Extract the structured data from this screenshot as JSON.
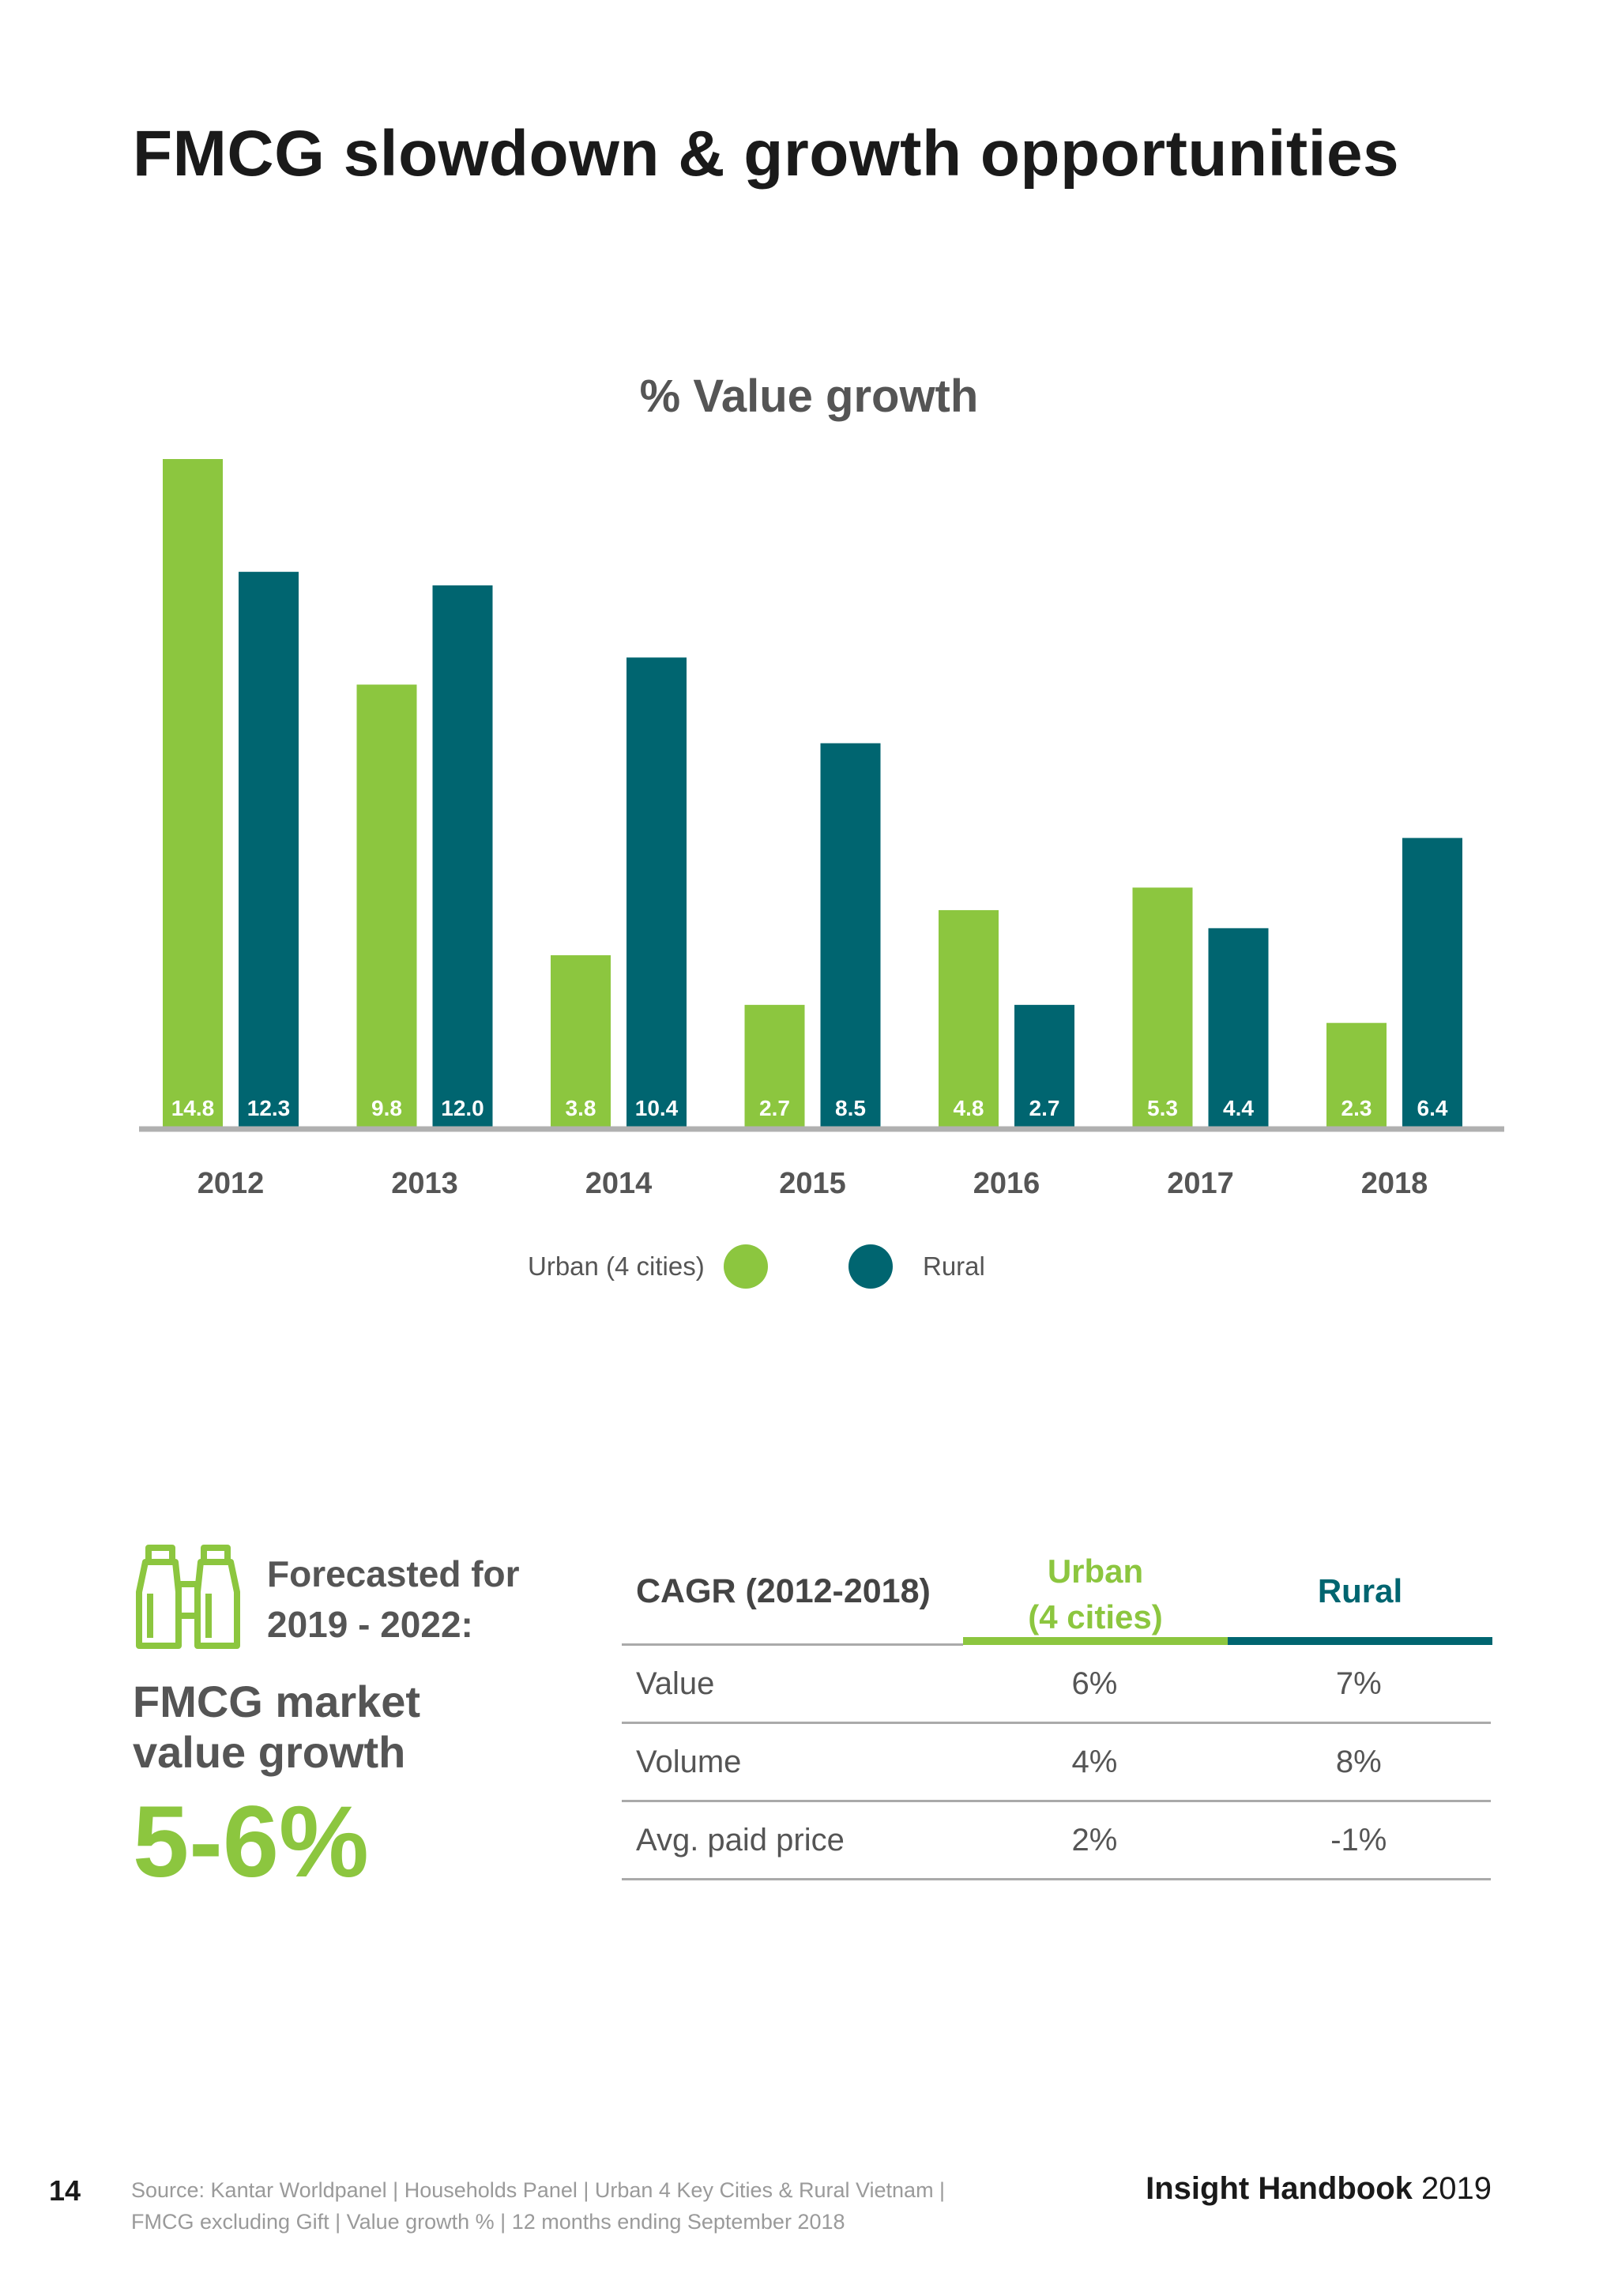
{
  "page": {
    "title": "FMCG slowdown & growth opportunities",
    "page_number": "14",
    "source_line1": "Source: Kantar Worldpanel | Households Panel | Urban 4 Key Cities & Rural Vietnam |",
    "source_line2": "FMCG excluding Gift | Value growth % | 12 months ending September 2018",
    "handbook_bold": "Insight Handbook",
    "handbook_year": "2019"
  },
  "chart_data": {
    "type": "bar",
    "title": "% Value growth",
    "categories": [
      "2012",
      "2013",
      "2014",
      "2015",
      "2016",
      "2017",
      "2018"
    ],
    "series": [
      {
        "name": "Urban (4 cities)",
        "color": "#8cc63f",
        "values": [
          14.8,
          9.8,
          3.8,
          2.7,
          4.8,
          5.3,
          2.3
        ],
        "labels": [
          "14.8",
          "9.8",
          "3.8",
          "2.7",
          "4.8",
          "5.3",
          "2.3"
        ]
      },
      {
        "name": "Rural",
        "color": "#006570",
        "values": [
          12.3,
          12.0,
          10.4,
          8.5,
          2.7,
          4.4,
          6.4
        ],
        "labels": [
          "12.3",
          "12.0",
          "10.4",
          "8.5",
          "2.7",
          "4.4",
          "6.4"
        ]
      }
    ],
    "ylim": [
      0,
      15
    ],
    "grid": false,
    "legend_position": "bottom-center"
  },
  "forecast": {
    "label": "Forecasted for 2019 - 2022:",
    "market_label": "FMCG market value growth",
    "market_value": "5-6%",
    "icon": "binoculars-icon"
  },
  "cagr_table": {
    "header_label": "CAGR (2012-2018)",
    "urban_header_line1": "Urban",
    "urban_header_line2": "(4 cities)",
    "rural_header": "Rural",
    "rows": [
      {
        "label": "Value",
        "urban": "6%",
        "rural": "7%"
      },
      {
        "label": "Volume",
        "urban": "4%",
        "rural": "8%"
      },
      {
        "label": "Avg. paid price",
        "urban": "2%",
        "rural": "-1%"
      }
    ]
  },
  "colors": {
    "urban": "#8cc63f",
    "rural": "#006570",
    "axis": "#b0b0b0",
    "text_gray": "#555555"
  }
}
